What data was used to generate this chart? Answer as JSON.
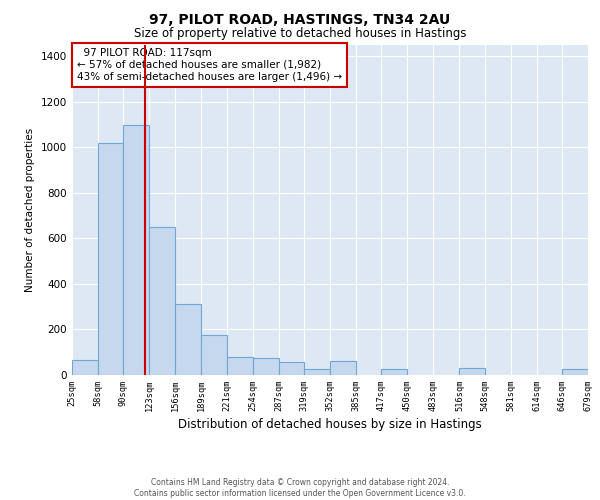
{
  "title": "97, PILOT ROAD, HASTINGS, TN34 2AU",
  "subtitle": "Size of property relative to detached houses in Hastings",
  "xlabel": "Distribution of detached houses by size in Hastings",
  "ylabel": "Number of detached properties",
  "footer_line1": "Contains HM Land Registry data © Crown copyright and database right 2024.",
  "footer_line2": "Contains public sector information licensed under the Open Government Licence v3.0.",
  "annotation_line1": "  97 PILOT ROAD: 117sqm",
  "annotation_line2": "← 57% of detached houses are smaller (1,982)",
  "annotation_line3": "43% of semi-detached houses are larger (1,496) →",
  "property_size": 117,
  "bin_edges": [
    25,
    58,
    90,
    123,
    156,
    189,
    221,
    254,
    287,
    319,
    352,
    385,
    417,
    450,
    483,
    516,
    548,
    581,
    614,
    646,
    679
  ],
  "bar_heights": [
    65,
    1020,
    1100,
    650,
    310,
    175,
    80,
    75,
    55,
    25,
    60,
    0,
    25,
    0,
    0,
    30,
    0,
    0,
    0,
    25
  ],
  "bar_color": "#c5d8ed",
  "bar_edge_color": "#6fa8d6",
  "vline_color": "#cc0000",
  "vline_x": 117,
  "annotation_box_color": "#cc0000",
  "background_color": "#dde8f4",
  "ylim": [
    0,
    1450
  ],
  "yticks": [
    0,
    200,
    400,
    600,
    800,
    1000,
    1200,
    1400
  ]
}
